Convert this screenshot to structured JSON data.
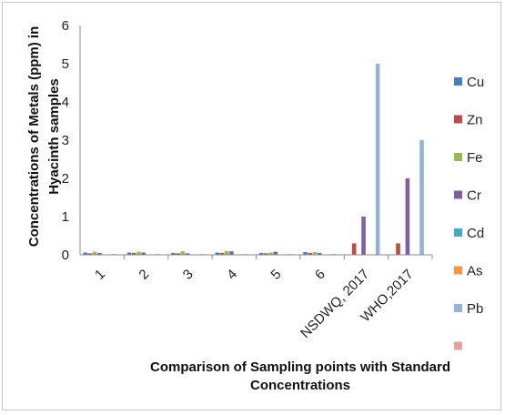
{
  "chart_data": {
    "type": "bar",
    "xlabel": "Comparison of Sampling points with Standard Concentrations",
    "xlabel_lines": [
      "Comparison of Sampling points with Standard",
      "Concentrations"
    ],
    "ylabel": "Concentrations of Metals (ppm) in Hyacinth samples",
    "ylabel_lines": [
      "Concentrations of Metals (ppm) in",
      "Hyacinth samples"
    ],
    "ylim": [
      0,
      6
    ],
    "yticks": [
      0,
      1,
      2,
      3,
      4,
      5,
      6
    ],
    "grid": false,
    "legend_position": "right",
    "categories": [
      "1",
      "2",
      "3",
      "4",
      "5",
      "6",
      "NSDWQ, 2017",
      "WHO,2017"
    ],
    "series": [
      {
        "name": "Cu",
        "color": "#4a7ebb",
        "values": [
          0.06,
          0.06,
          0.05,
          0.06,
          0.05,
          0.07,
          0,
          0
        ]
      },
      {
        "name": "Zn",
        "color": "#be4b48",
        "values": [
          0.04,
          0.05,
          0.04,
          0.05,
          0.04,
          0.05,
          0.3,
          0.3
        ]
      },
      {
        "name": "Fe",
        "color": "#98b954",
        "values": [
          0.08,
          0.08,
          0.09,
          0.1,
          0.06,
          0.07,
          0,
          0
        ]
      },
      {
        "name": "Cr",
        "color": "#7d60a0",
        "values": [
          0.05,
          0.06,
          0.04,
          0.09,
          0.08,
          0.05,
          1,
          2
        ]
      },
      {
        "name": "Cd",
        "color": "#46aac5",
        "values": [
          0.01,
          0.01,
          0.01,
          0.01,
          0.01,
          0.01,
          0,
          0
        ]
      },
      {
        "name": "As",
        "color": "#f79646",
        "values": [
          0.01,
          0.01,
          0.01,
          0.01,
          0.01,
          0.01,
          0,
          0
        ]
      },
      {
        "name": "Pb",
        "color": "#95b3d7",
        "values": [
          0.02,
          0.02,
          0.02,
          0.02,
          0.02,
          0.02,
          5,
          3
        ]
      },
      {
        "name": "",
        "color": "#e6a0a0",
        "values": [
          0,
          0,
          0,
          0,
          0,
          0,
          0,
          0
        ]
      }
    ]
  }
}
